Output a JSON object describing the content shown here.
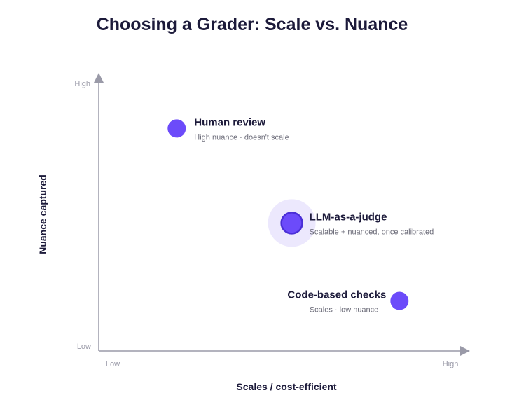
{
  "chart_data": {
    "type": "scatter",
    "title": "Choosing a Grader: Scale vs. Nuance",
    "xlabel": "Scales / cost-efficient",
    "ylabel": "Nuance captured",
    "x_ticks": {
      "low": "Low",
      "high": "High"
    },
    "y_ticks": {
      "low": "Low",
      "high": "High"
    },
    "xlim": [
      0,
      1
    ],
    "ylim": [
      0,
      1
    ],
    "grid": false,
    "colors": {
      "point": "#6c4bfa",
      "highlight_stroke": "#4a2fd6",
      "highlight_halo": "#ece8fd",
      "axis": "#9a9aa8"
    },
    "points": [
      {
        "name": "Human review",
        "note": "High nuance · doesn't scale",
        "x": 0.21,
        "y": 0.8,
        "highlight": false,
        "label_side": "right"
      },
      {
        "name": "LLM-as-a-judge",
        "note": "Scalable + nuanced, once calibrated",
        "x": 0.52,
        "y": 0.46,
        "highlight": true,
        "label_side": "right"
      },
      {
        "name": "Code-based checks",
        "note": "Scales · low nuance",
        "x": 0.81,
        "y": 0.18,
        "highlight": false,
        "label_side": "left"
      }
    ]
  }
}
